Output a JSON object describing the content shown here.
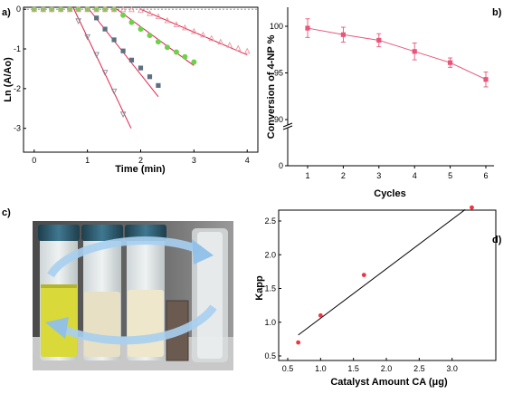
{
  "panels": {
    "a": {
      "label": "a)",
      "chart_data": {
        "type": "scatter",
        "xlabel": "Time (min)",
        "ylabel": "Ln (A/Ao)",
        "xlim": [
          -0.2,
          4.2
        ],
        "ylim": [
          -3.6,
          0.05
        ],
        "xticks": [
          0,
          1,
          2,
          3,
          4
        ],
        "yticks": [
          0,
          -1,
          -2,
          -3
        ],
        "series": [
          {
            "marker": "triangle-down-open",
            "color": "#8c8c96",
            "x": [
              0,
              0.17,
              0.33,
              0.5,
              0.67,
              0.83,
              1.0,
              1.17,
              1.33,
              1.5,
              1.67
            ],
            "y": [
              0,
              0,
              0,
              0,
              0,
              -0.3,
              -0.7,
              -1.15,
              -1.6,
              -2.07,
              -2.65
            ],
            "fit": {
              "x": [
                0.73,
                1.82
              ],
              "y": [
                0.05,
                -3.0
              ]
            }
          },
          {
            "marker": "square-filled",
            "color": "#5c7080",
            "x": [
              0,
              0.17,
              0.33,
              0.5,
              0.67,
              0.83,
              1.0,
              1.17,
              1.33,
              1.5,
              1.67,
              1.83,
              2.0,
              2.17,
              2.33
            ],
            "y": [
              0,
              0,
              0,
              0,
              0,
              0,
              0,
              -0.22,
              -0.5,
              -0.77,
              -1.05,
              -1.28,
              -1.48,
              -1.7,
              -1.92
            ],
            "fit": {
              "x": [
                1.0,
                2.33
              ],
              "y": [
                0.05,
                -2.2
              ]
            }
          },
          {
            "marker": "circle-filled",
            "color": "#6dd24a",
            "x": [
              0,
              0.17,
              0.33,
              0.5,
              0.67,
              0.83,
              1.0,
              1.17,
              1.33,
              1.5,
              1.67,
              1.83,
              2.0,
              2.17,
              2.33,
              2.5,
              2.67,
              2.83,
              3.0
            ],
            "y": [
              0,
              0,
              0,
              0,
              0,
              0,
              0,
              0,
              0,
              0,
              -0.15,
              -0.33,
              -0.5,
              -0.66,
              -0.82,
              -0.96,
              -1.08,
              -1.2,
              -1.33
            ],
            "fit": {
              "x": [
                1.5,
                3.0
              ],
              "y": [
                0.05,
                -1.42
              ]
            }
          },
          {
            "marker": "triangle-up-open",
            "color": "#e898a0",
            "x": [
              0,
              0.17,
              0.33,
              0.5,
              0.67,
              0.83,
              1.0,
              1.17,
              1.33,
              1.5,
              1.67,
              1.83,
              2.0,
              2.17,
              2.33,
              2.5,
              2.67,
              2.83,
              3.0,
              3.17,
              3.33,
              3.5,
              3.67,
              3.83,
              4.0
            ],
            "y": [
              0,
              0,
              0,
              0,
              0,
              0,
              0,
              0,
              0,
              0,
              0,
              0,
              -0.02,
              -0.1,
              -0.18,
              -0.28,
              -0.38,
              -0.46,
              -0.55,
              -0.64,
              -0.73,
              -0.82,
              -0.9,
              -0.98,
              -1.05
            ],
            "fit": {
              "x": [
                2.0,
                4.0
              ],
              "y": [
                0.0,
                -1.15
              ]
            }
          }
        ]
      }
    },
    "b": {
      "label": "b)",
      "chart_data": {
        "type": "line",
        "xlabel": "Cycles",
        "ylabel": "Conversion of 4-NP %",
        "x": [
          1,
          2,
          3,
          4,
          5,
          6
        ],
        "y": [
          99.8,
          99.1,
          98.5,
          97.3,
          96.1,
          94.3
        ],
        "err": [
          1.0,
          0.8,
          0.7,
          0.9,
          0.5,
          0.8
        ],
        "xticks": [
          1,
          2,
          3,
          4,
          5,
          6
        ],
        "yticks_upper": [
          90,
          95,
          100
        ],
        "ytick_lower": 0,
        "color": "#e8557a"
      }
    },
    "c": {
      "label": "c)",
      "photo_colors": {
        "cap": "#2f5c6e",
        "background": "#5a5a5a",
        "yellow": "#d9d93a",
        "liquid_pale": "#e8e0c4",
        "arrow": "#a8d0f0",
        "catalyst": "#6b5a50"
      }
    },
    "d": {
      "label": "d)",
      "chart_data": {
        "type": "scatter",
        "xlabel": "Catalyst Amount CA (μg)",
        "ylabel": "Kapp",
        "x": [
          0.66,
          1.0,
          1.66,
          3.3
        ],
        "y": [
          0.7,
          1.1,
          1.7,
          2.7
        ],
        "fit": {
          "x": [
            0.66,
            3.2
          ],
          "y": [
            0.81,
            2.67
          ]
        },
        "xlim": [
          0.5,
          3.5
        ],
        "ylim": [
          0.5,
          2.75
        ],
        "xticks": [
          0.5,
          1.0,
          1.5,
          2.0,
          2.5,
          3.0
        ],
        "yticks": [
          0.5,
          1.0,
          1.5,
          2.0,
          2.5
        ],
        "color": "#ee3344"
      }
    }
  }
}
